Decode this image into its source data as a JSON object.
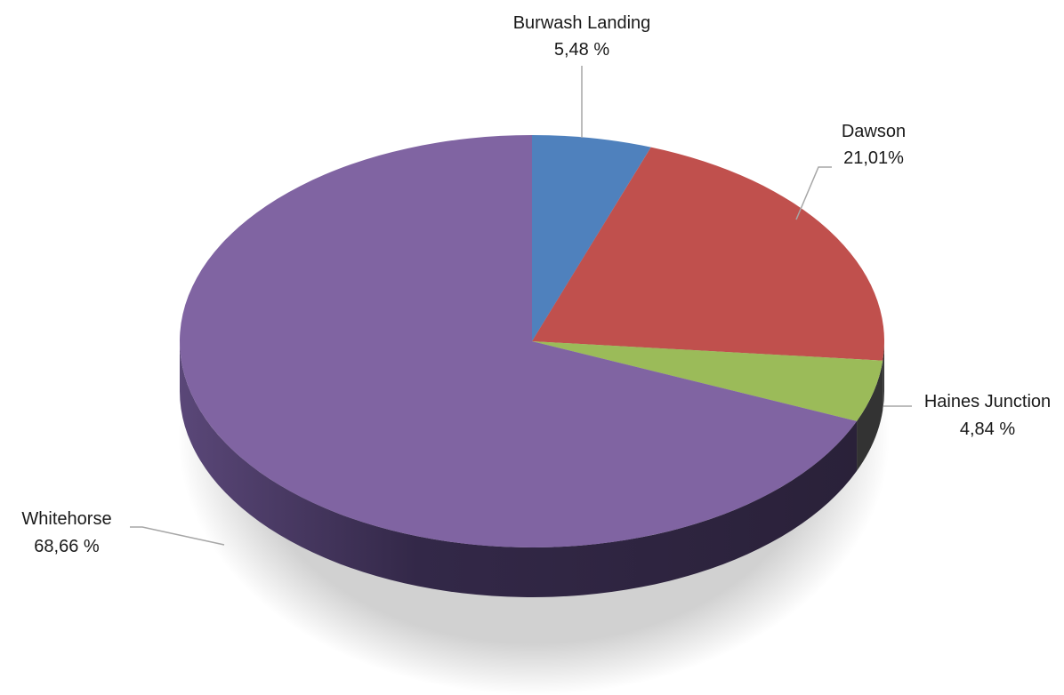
{
  "chart_data": {
    "type": "pie",
    "style": "3d",
    "legend": "none",
    "slices": [
      {
        "name": "Burwash Landing",
        "value": 5.48,
        "label": "5,48 %",
        "color": "#4f81bd"
      },
      {
        "name": "Dawson",
        "value": 21.01,
        "label": "21,01%",
        "color": "#c0504d"
      },
      {
        "name": "Haines Junction",
        "value": 4.84,
        "label": "4,84 %",
        "color": "#9bbb59"
      },
      {
        "name": "Whitehorse",
        "value": 68.66,
        "label": "68,66 %",
        "color": "#8064a2"
      }
    ],
    "side_colors": {
      "Whitehorse": "#3d2f55"
    }
  }
}
